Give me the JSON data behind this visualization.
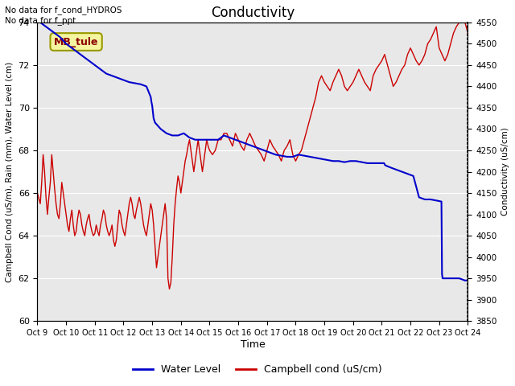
{
  "title": "Conductivity",
  "xlabel": "Time",
  "ylabel_left": "Campbell Cond (uS/m), Rain (mm), Water Level (cm)",
  "ylabel_right": "Conductivity (uS/cm)",
  "ylim_left": [
    60,
    74
  ],
  "ylim_right": [
    3850,
    4550
  ],
  "yticks_left": [
    60,
    62,
    64,
    66,
    68,
    70,
    72,
    74
  ],
  "yticks_right": [
    3850,
    3900,
    3950,
    4000,
    4050,
    4100,
    4150,
    4200,
    4250,
    4300,
    4350,
    4400,
    4450,
    4500,
    4550
  ],
  "xtick_labels": [
    "Oct 9",
    "Oct 10",
    "Oct 11",
    "Oct 12",
    "Oct 13",
    "Oct 14",
    "Oct 15",
    "Oct 16",
    "Oct 17",
    "Oct 18",
    "Oct 19",
    "Oct 20",
    "Oct 21",
    "Oct 22",
    "Oct 23",
    "Oct 24"
  ],
  "no_data_text": "No data for f_cond_HYDROS\nNo data for f_ppt",
  "legend_box_text": "MB_tule",
  "legend_box_color": "#f5f5a0",
  "legend_box_border": "#999900",
  "plot_bg_color": "#e8e8e8",
  "fig_bg_color": "#ffffff",
  "water_level_color": "#0000cc",
  "campbell_cond_color": "#cc0000",
  "water_level_label": "Water Level",
  "campbell_cond_label": "Campbell cond (uS/cm)",
  "grid_color": "#ffffff",
  "wl_x": [
    0,
    0.2,
    0.4,
    0.6,
    0.8,
    1.0,
    1.2,
    1.4,
    1.6,
    1.8,
    2.0,
    2.2,
    2.4,
    2.6,
    2.8,
    3.0,
    3.2,
    3.4,
    3.6,
    3.8,
    3.95,
    3.97,
    4.0,
    4.05,
    4.1,
    4.3,
    4.5,
    4.7,
    4.9,
    5.1,
    5.3,
    5.5,
    5.7,
    5.9,
    6.1,
    6.3,
    6.5,
    6.7,
    6.9,
    7.1,
    7.3,
    7.5,
    7.7,
    7.9,
    8.1,
    8.3,
    8.5,
    8.7,
    8.9,
    9.1,
    9.3,
    9.5,
    9.7,
    9.9,
    10.1,
    10.3,
    10.5,
    10.7,
    10.9,
    11.1,
    11.3,
    11.5,
    11.7,
    11.9,
    12.08,
    12.1,
    12.12,
    12.3,
    12.5,
    12.7,
    12.9,
    13.1,
    13.3,
    13.5,
    13.7,
    13.9,
    14.08,
    14.1,
    14.12,
    14.3,
    14.5,
    14.7,
    14.9,
    15.0
  ],
  "wl_y": [
    74.1,
    73.9,
    73.7,
    73.5,
    73.3,
    73.0,
    72.8,
    72.6,
    72.4,
    72.2,
    72.0,
    71.8,
    71.6,
    71.5,
    71.4,
    71.3,
    71.2,
    71.15,
    71.1,
    71.0,
    70.5,
    70.3,
    70.1,
    69.5,
    69.3,
    69.0,
    68.8,
    68.7,
    68.7,
    68.8,
    68.6,
    68.5,
    68.5,
    68.5,
    68.5,
    68.5,
    68.7,
    68.6,
    68.5,
    68.4,
    68.3,
    68.2,
    68.1,
    68.0,
    67.9,
    67.8,
    67.75,
    67.7,
    67.7,
    67.8,
    67.75,
    67.7,
    67.65,
    67.6,
    67.55,
    67.5,
    67.5,
    67.45,
    67.5,
    67.5,
    67.45,
    67.4,
    67.4,
    67.4,
    67.4,
    67.35,
    67.3,
    67.2,
    67.1,
    67.0,
    66.9,
    66.8,
    65.8,
    65.7,
    65.7,
    65.65,
    65.6,
    62.2,
    62.0,
    62.0,
    62.0,
    62.0,
    61.9,
    61.9
  ],
  "cc_x": [
    0,
    0.1,
    0.15,
    0.2,
    0.25,
    0.3,
    0.35,
    0.4,
    0.45,
    0.5,
    0.55,
    0.6,
    0.65,
    0.7,
    0.75,
    0.8,
    0.85,
    0.9,
    0.95,
    1.0,
    1.05,
    1.1,
    1.15,
    1.2,
    1.25,
    1.3,
    1.35,
    1.4,
    1.45,
    1.5,
    1.55,
    1.6,
    1.65,
    1.7,
    1.75,
    1.8,
    1.85,
    1.9,
    1.95,
    2.0,
    2.05,
    2.1,
    2.15,
    2.2,
    2.25,
    2.3,
    2.35,
    2.4,
    2.45,
    2.5,
    2.55,
    2.6,
    2.65,
    2.7,
    2.75,
    2.8,
    2.85,
    2.9,
    2.95,
    3.0,
    3.05,
    3.1,
    3.15,
    3.2,
    3.25,
    3.3,
    3.35,
    3.4,
    3.45,
    3.5,
    3.55,
    3.6,
    3.65,
    3.7,
    3.75,
    3.8,
    3.85,
    3.9,
    3.95,
    4.0,
    4.05,
    4.1,
    4.15,
    4.2,
    4.25,
    4.3,
    4.35,
    4.4,
    4.45,
    4.5,
    4.55,
    4.6,
    4.65,
    4.7,
    4.75,
    4.8,
    4.85,
    4.9,
    4.95,
    5.0,
    5.05,
    5.1,
    5.15,
    5.2,
    5.25,
    5.3,
    5.35,
    5.4,
    5.45,
    5.5,
    5.55,
    5.6,
    5.65,
    5.7,
    5.75,
    5.8,
    5.85,
    5.9,
    5.95,
    6.0,
    6.1,
    6.2,
    6.3,
    6.4,
    6.5,
    6.6,
    6.7,
    6.8,
    6.9,
    7.0,
    7.1,
    7.2,
    7.3,
    7.4,
    7.5,
    7.6,
    7.7,
    7.8,
    7.9,
    8.0,
    8.1,
    8.2,
    8.3,
    8.4,
    8.5,
    8.6,
    8.7,
    8.8,
    8.9,
    9.0,
    9.1,
    9.2,
    9.3,
    9.4,
    9.5,
    9.6,
    9.7,
    9.8,
    9.9,
    10.0,
    10.1,
    10.2,
    10.3,
    10.4,
    10.5,
    10.6,
    10.7,
    10.8,
    10.9,
    11.0,
    11.1,
    11.2,
    11.3,
    11.4,
    11.5,
    11.6,
    11.7,
    11.8,
    11.9,
    12.0,
    12.1,
    12.2,
    12.3,
    12.4,
    12.5,
    12.6,
    12.7,
    12.8,
    12.9,
    13.0,
    13.1,
    13.2,
    13.3,
    13.4,
    13.5,
    13.6,
    13.7,
    13.8,
    13.9,
    14.0,
    14.1,
    14.2,
    14.3,
    14.4,
    14.5,
    14.6,
    14.7,
    14.8,
    14.9,
    15.0
  ],
  "cc_y": [
    66.0,
    65.5,
    66.5,
    67.8,
    67.0,
    65.8,
    65.0,
    65.8,
    66.5,
    67.8,
    67.0,
    66.2,
    65.5,
    65.0,
    64.8,
    65.5,
    66.5,
    66.0,
    65.5,
    65.0,
    64.5,
    64.2,
    64.8,
    65.2,
    64.5,
    64.0,
    64.2,
    64.8,
    65.2,
    65.0,
    64.5,
    64.2,
    64.0,
    64.5,
    64.8,
    65.0,
    64.5,
    64.2,
    64.0,
    64.1,
    64.5,
    64.2,
    64.0,
    64.5,
    64.8,
    65.2,
    65.0,
    64.5,
    64.2,
    64.0,
    64.2,
    64.5,
    63.8,
    63.5,
    63.8,
    64.5,
    65.2,
    65.0,
    64.5,
    64.2,
    64.0,
    64.5,
    65.0,
    65.5,
    65.8,
    65.5,
    65.0,
    64.8,
    65.2,
    65.5,
    65.8,
    65.5,
    65.0,
    64.5,
    64.2,
    64.0,
    64.5,
    65.0,
    65.5,
    65.2,
    64.5,
    63.5,
    62.5,
    63.0,
    63.5,
    64.0,
    64.5,
    65.0,
    65.5,
    64.8,
    62.0,
    61.5,
    61.8,
    63.0,
    64.5,
    65.5,
    66.2,
    66.8,
    66.5,
    66.0,
    66.5,
    67.0,
    67.5,
    67.8,
    68.2,
    68.5,
    68.0,
    67.5,
    67.0,
    67.5,
    68.0,
    68.5,
    68.0,
    67.5,
    67.0,
    67.5,
    68.0,
    68.5,
    68.2,
    68.0,
    67.8,
    68.0,
    68.5,
    68.5,
    68.8,
    68.8,
    68.5,
    68.2,
    68.8,
    68.5,
    68.2,
    68.0,
    68.5,
    68.8,
    68.5,
    68.2,
    68.0,
    67.8,
    67.5,
    68.0,
    68.5,
    68.2,
    68.0,
    67.8,
    67.5,
    68.0,
    68.2,
    68.5,
    67.8,
    67.5,
    67.8,
    68.0,
    68.5,
    69.0,
    69.5,
    70.0,
    70.5,
    71.2,
    71.5,
    71.2,
    71.0,
    70.8,
    71.2,
    71.5,
    71.8,
    71.5,
    71.0,
    70.8,
    71.0,
    71.2,
    71.5,
    71.8,
    71.5,
    71.2,
    71.0,
    70.8,
    71.5,
    71.8,
    72.0,
    72.2,
    72.5,
    72.0,
    71.5,
    71.0,
    71.2,
    71.5,
    71.8,
    72.0,
    72.5,
    72.8,
    72.5,
    72.2,
    72.0,
    72.2,
    72.5,
    73.0,
    73.2,
    73.5,
    73.8,
    72.8,
    72.5,
    72.2,
    72.5,
    73.0,
    73.5,
    73.8,
    74.0,
    74.2,
    74.0,
    73.5
  ]
}
